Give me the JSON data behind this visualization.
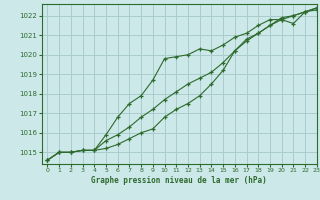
{
  "title": "Graphe pression niveau de la mer (hPa)",
  "background_color": "#cce8e8",
  "grid_color": "#aacccc",
  "line_color": "#2d6a2d",
  "xlim": [
    -0.5,
    23
  ],
  "ylim": [
    1014.4,
    1022.6
  ],
  "yticks": [
    1015,
    1016,
    1017,
    1018,
    1019,
    1020,
    1021,
    1022
  ],
  "xticks": [
    0,
    1,
    2,
    3,
    4,
    5,
    6,
    7,
    8,
    9,
    10,
    11,
    12,
    13,
    14,
    15,
    16,
    17,
    18,
    19,
    20,
    21,
    22,
    23
  ],
  "series": [
    [
      1014.6,
      1015.0,
      1015.0,
      1015.1,
      1015.1,
      1015.6,
      1015.9,
      1016.3,
      1016.8,
      1017.2,
      1017.7,
      1018.1,
      1018.5,
      1018.8,
      1019.1,
      1019.6,
      1020.2,
      1020.7,
      1021.1,
      1021.5,
      1021.8,
      1022.0,
      1022.2,
      1022.4
    ],
    [
      1014.6,
      1015.0,
      1015.0,
      1015.1,
      1015.1,
      1015.9,
      1016.8,
      1017.5,
      1017.9,
      1018.7,
      1019.8,
      1019.9,
      1020.0,
      1020.3,
      1020.2,
      1020.5,
      1020.9,
      1021.1,
      1021.5,
      1021.8,
      1021.8,
      1021.6,
      1022.2,
      1022.3
    ],
    [
      1014.6,
      1015.0,
      1015.0,
      1015.1,
      1015.1,
      1015.2,
      1015.4,
      1015.7,
      1016.0,
      1016.2,
      1016.8,
      1017.2,
      1017.5,
      1017.9,
      1018.5,
      1019.2,
      1020.2,
      1020.8,
      1021.1,
      1021.5,
      1021.9,
      1022.0,
      1022.2,
      1022.4
    ]
  ]
}
